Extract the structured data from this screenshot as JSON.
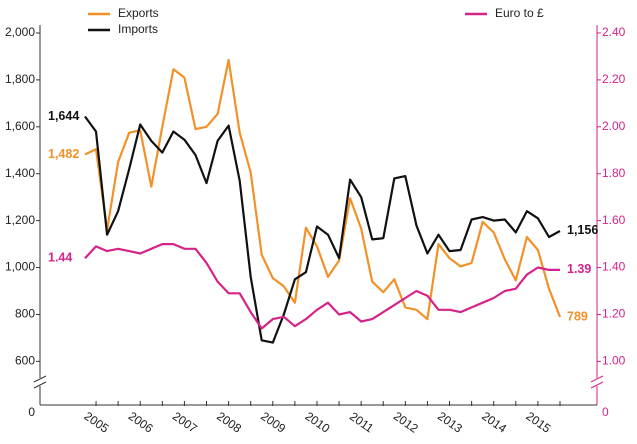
{
  "chart_data": {
    "type": "line",
    "categories": [
      null,
      "2005",
      null,
      null,
      null,
      "2006",
      null,
      null,
      null,
      "2007",
      null,
      null,
      null,
      "2008",
      null,
      null,
      null,
      "2009",
      null,
      null,
      null,
      "2010",
      null,
      null,
      null,
      "2011",
      null,
      null,
      null,
      "2012",
      null,
      null,
      null,
      "2013",
      null,
      null,
      null,
      "2014",
      null,
      null,
      null,
      "2015",
      null,
      null
    ],
    "series": [
      {
        "name": "Exports",
        "color": "#f39129",
        "values": [
          1482,
          1505,
          1160,
          1450,
          1575,
          1585,
          1345,
          1600,
          1845,
          1810,
          1590,
          1600,
          1655,
          1885,
          1575,
          1405,
          1055,
          955,
          920,
          850,
          1170,
          1090,
          960,
          1030,
          1295,
          1165,
          940,
          895,
          950,
          830,
          820,
          780,
          1100,
          1040,
          1005,
          1020,
          1195,
          1150,
          1035,
          945,
          1130,
          1075,
          910,
          789
        ],
        "value_labels": {
          "0": "1,482",
          "43": "789"
        }
      },
      {
        "name": "Imports",
        "color": "#111111",
        "values": [
          1644,
          1580,
          1140,
          1240,
          1420,
          1610,
          1540,
          1490,
          1580,
          1545,
          1480,
          1360,
          1540,
          1605,
          1370,
          960,
          690,
          680,
          800,
          950,
          980,
          1175,
          1140,
          1040,
          1375,
          1300,
          1120,
          1125,
          1380,
          1390,
          1180,
          1060,
          1140,
          1070,
          1075,
          1205,
          1215,
          1200,
          1205,
          1150,
          1240,
          1210,
          1130,
          1156
        ],
        "value_labels": {
          "0": "1,644",
          "43": "1,156"
        }
      },
      {
        "name": "Euro to £",
        "color": "#d6238a",
        "axis": "y2",
        "values": [
          1.44,
          1.49,
          1.47,
          1.48,
          1.47,
          1.46,
          1.48,
          1.5,
          1.5,
          1.48,
          1.48,
          1.42,
          1.34,
          1.29,
          1.29,
          1.21,
          1.14,
          1.18,
          1.19,
          1.15,
          1.18,
          1.22,
          1.25,
          1.2,
          1.21,
          1.17,
          1.18,
          1.21,
          1.24,
          1.27,
          1.3,
          1.28,
          1.22,
          1.22,
          1.21,
          1.23,
          1.25,
          1.27,
          1.3,
          1.31,
          1.37,
          1.4,
          1.39,
          1.39
        ],
        "value_labels": {
          "0": "1.44",
          "43": "1.39"
        }
      }
    ],
    "ylim": [
      414,
      2034
    ],
    "yticks": [
      600,
      800,
      {
        "value": 1000,
        "label": "1,000"
      },
      {
        "value": 1200,
        "label": "1,200"
      },
      {
        "value": 1400,
        "label": "1,400"
      },
      {
        "value": 1600,
        "label": "1,600"
      },
      {
        "value": 1800,
        "label": "1,800"
      },
      {
        "value": 2000,
        "label": "2,000"
      }
    ],
    "y_floor_label": 0,
    "y2lim": [
      0.814,
      2.434
    ],
    "y2ticks": [
      {
        "value": 1.0,
        "label": "1.00"
      },
      {
        "value": 1.2,
        "label": "1.20"
      },
      {
        "value": 1.4,
        "label": "1.40"
      },
      {
        "value": 1.6,
        "label": "1.60"
      },
      {
        "value": 1.8,
        "label": "1.80"
      },
      {
        "value": 2.0,
        "label": "2.00"
      },
      {
        "value": 2.2,
        "label": "2.20"
      },
      {
        "value": 2.4,
        "label": "2.40"
      }
    ],
    "y2_floor_label": 0,
    "y2_color": "#d6238a",
    "grid": false
  }
}
